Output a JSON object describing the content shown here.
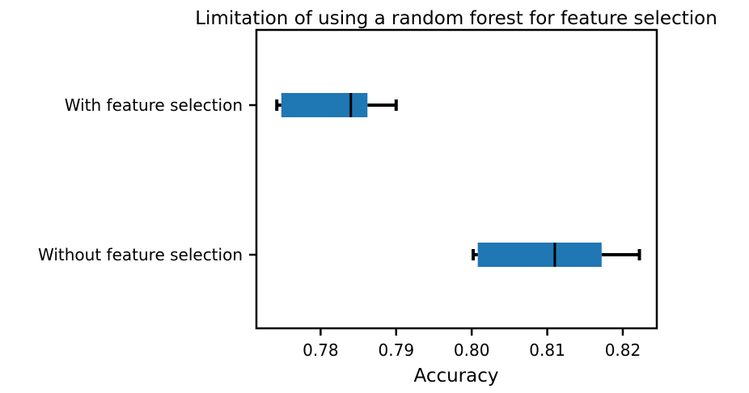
{
  "chart_data": {
    "type": "boxplot",
    "orientation": "horizontal",
    "title": "Limitation of using a random forest for feature selection",
    "xlabel": "Accuracy",
    "ylabel": "",
    "xlim": [
      0.7715,
      0.8245
    ],
    "xticks": [
      0.78,
      0.79,
      0.8,
      0.81,
      0.82
    ],
    "xtick_labels": [
      "0.78",
      "0.79",
      "0.80",
      "0.81",
      "0.82"
    ],
    "grid": false,
    "box_color": "#1f77b4",
    "categories": [
      "With feature selection",
      "Without feature selection"
    ],
    "series": [
      {
        "category": "With feature selection",
        "whisker_low": 0.7742,
        "q1": 0.7748,
        "median": 0.784,
        "q3": 0.7862,
        "whisker_high": 0.79
      },
      {
        "category": "Without feature selection",
        "whisker_low": 0.8002,
        "q1": 0.8008,
        "median": 0.811,
        "q3": 0.8172,
        "whisker_high": 0.8222
      }
    ]
  }
}
